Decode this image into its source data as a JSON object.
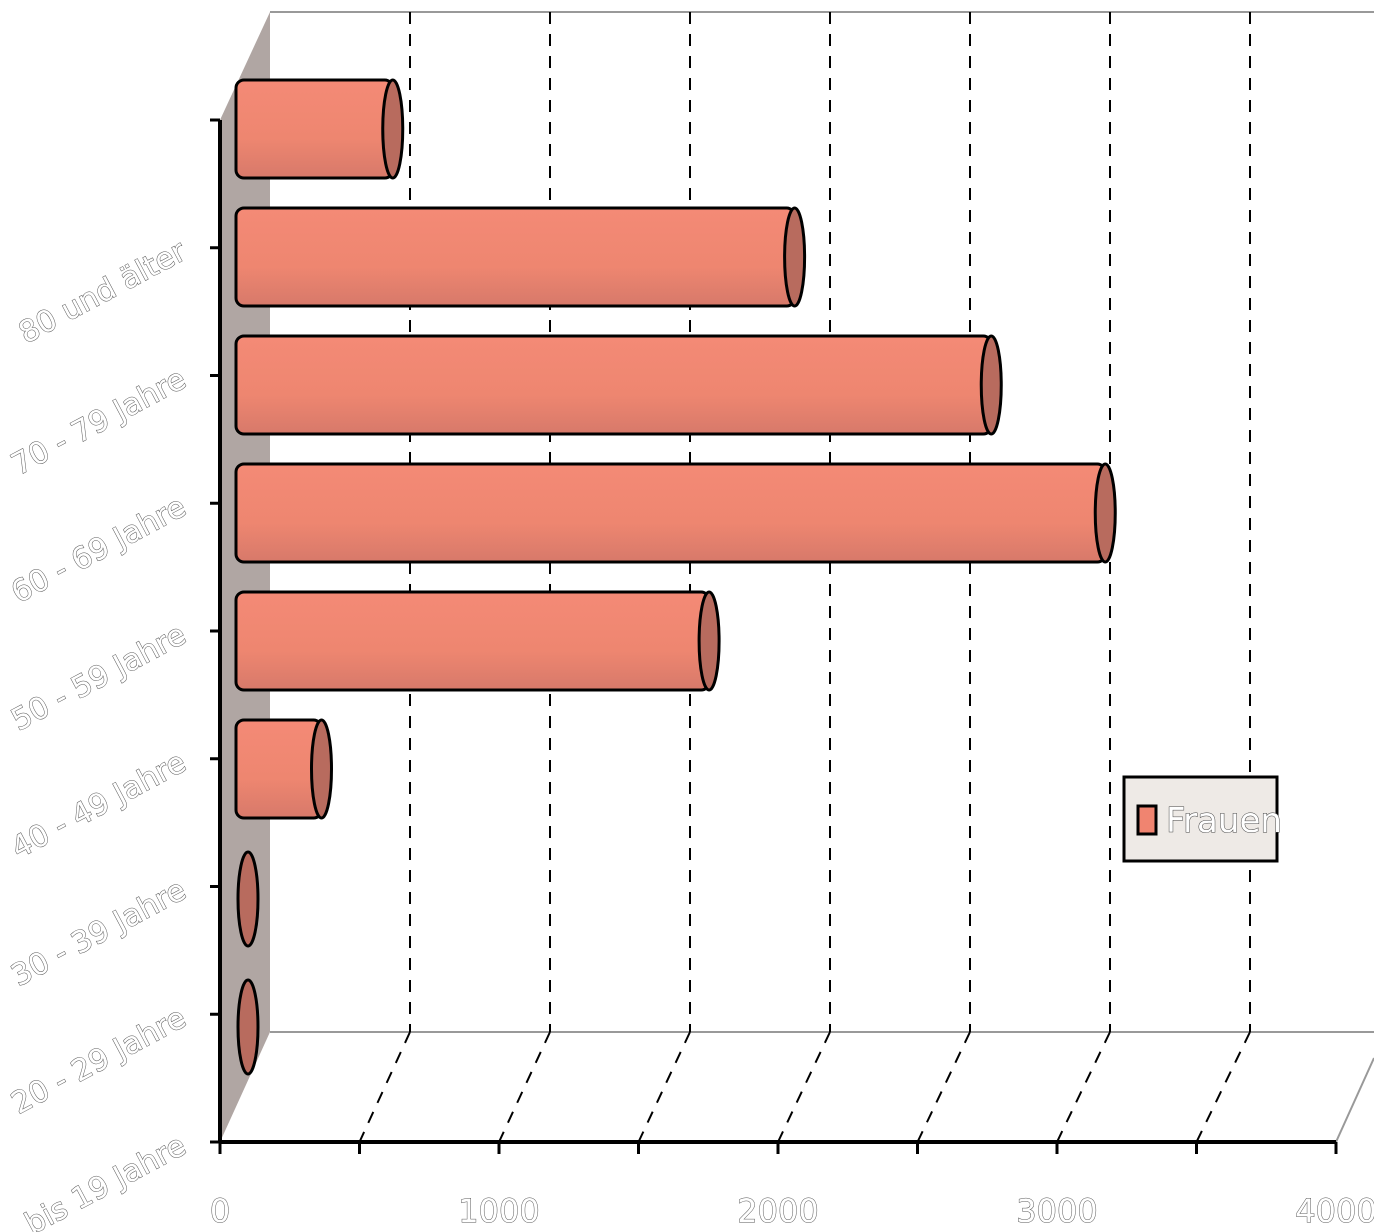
{
  "chart_data": {
    "type": "bar",
    "orientation": "horizontal",
    "style": "3d-cylinder",
    "categories": [
      "bis 19 Jahre",
      "20 - 29 Jahre",
      "30 - 39 Jahre",
      "40 - 49 Jahre",
      "50 - 59 Jahre",
      "60 - 69 Jahre",
      "70 - 79 Jahre",
      "80 und älter"
    ],
    "series": [
      {
        "name": "Frauen",
        "values": [
          10,
          25,
          300,
          1660,
          3050,
          2650,
          1960,
          550
        ]
      }
    ],
    "xlim": [
      0,
      4000
    ],
    "xticks": [
      "0",
      "1000",
      "2000",
      "3000",
      "4000"
    ],
    "grid": true,
    "legend": "right",
    "colors": {
      "bar": "#f08470",
      "bar_dark": "#b86b5e",
      "wall": "#b0a6a3",
      "grid": "#000000",
      "legend_bg": "#eeeae6"
    }
  }
}
